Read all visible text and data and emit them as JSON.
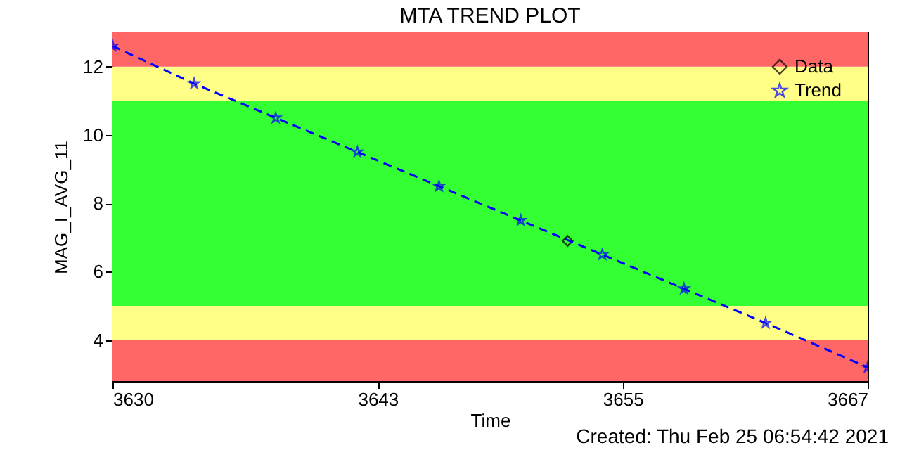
{
  "chart_data": {
    "type": "scatter",
    "title": "MTA TREND PLOT",
    "xlabel": "Time",
    "ylabel": "MAG_I_AVG_11",
    "xlim": [
      3630,
      3667
    ],
    "xticks": [
      3630,
      3643,
      3655,
      3667
    ],
    "ylim": [
      2.8,
      13
    ],
    "yticks": [
      4,
      6,
      8,
      10,
      12
    ],
    "series": [
      {
        "name": "Data",
        "marker": "diamond",
        "color": "#000000",
        "x": [
          3652.3
        ],
        "values": [
          6.9
        ]
      },
      {
        "name": "Trend",
        "type": "line",
        "marker": "star",
        "line_style": "dashed",
        "color": "#0000ff",
        "x": [
          3630,
          3634,
          3638,
          3642,
          3646,
          3650,
          3654,
          3658,
          3662,
          3667
        ],
        "values": [
          12.6,
          11.5,
          10.5,
          9.5,
          8.5,
          7.5,
          6.5,
          5.5,
          4.5,
          3.2
        ]
      }
    ],
    "bands": [
      {
        "axis": "y",
        "from": 2.8,
        "to": 4,
        "color": "#ff6666"
      },
      {
        "axis": "y",
        "from": 4,
        "to": 5,
        "color": "#ffff88"
      },
      {
        "axis": "y",
        "from": 5,
        "to": 11,
        "color": "#33ff33"
      },
      {
        "axis": "y",
        "from": 11,
        "to": 12,
        "color": "#ffff88"
      },
      {
        "axis": "y",
        "from": 12,
        "to": 13,
        "color": "#ff6666"
      }
    ],
    "legend": "top right",
    "grid": false,
    "annotations": [
      "Created: Thu Feb 25 06:54:42 2021"
    ]
  }
}
